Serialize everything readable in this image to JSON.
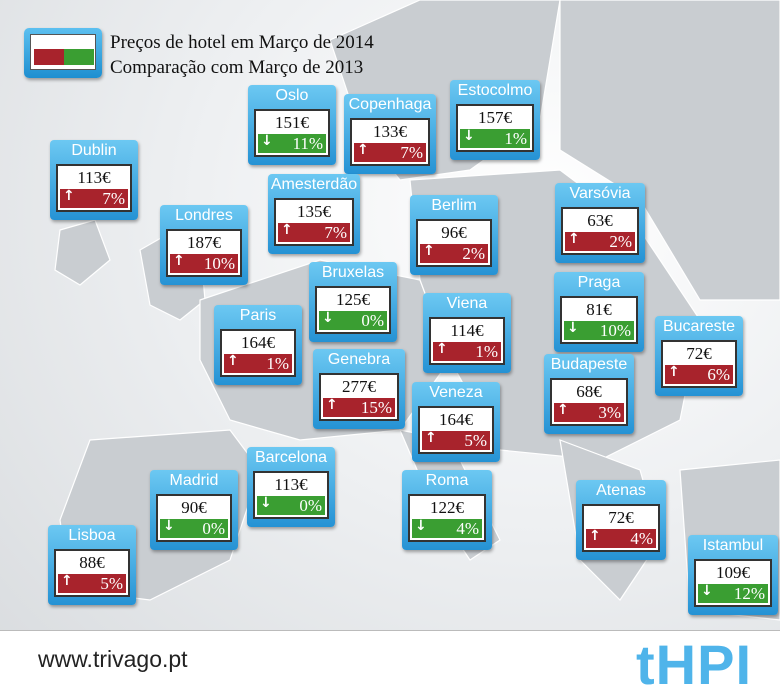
{
  "legend": {
    "price_label": "Preços de hotel em Março de 2014",
    "comparison_label": "Comparação com Março de 2013"
  },
  "colors": {
    "increase": "#a8232c",
    "decrease": "#3a9e32",
    "card": "#2592d4"
  },
  "cities": [
    {
      "name": "Oslo",
      "price": "151€",
      "direction": "down",
      "change": "11%"
    },
    {
      "name": "Copenhaga",
      "price": "133€",
      "direction": "up",
      "change": "7%"
    },
    {
      "name": "Estocolmo",
      "price": "157€",
      "direction": "down",
      "change": "1%"
    },
    {
      "name": "Dublin",
      "price": "113€",
      "direction": "up",
      "change": "7%"
    },
    {
      "name": "Amesterdão",
      "price": "135€",
      "direction": "up",
      "change": "7%"
    },
    {
      "name": "Berlim",
      "price": "96€",
      "direction": "up",
      "change": "2%"
    },
    {
      "name": "Varsóvia",
      "price": "63€",
      "direction": "up",
      "change": "2%"
    },
    {
      "name": "Londres",
      "price": "187€",
      "direction": "up",
      "change": "10%"
    },
    {
      "name": "Bruxelas",
      "price": "125€",
      "direction": "down",
      "change": "0%"
    },
    {
      "name": "Praga",
      "price": "81€",
      "direction": "down",
      "change": "10%"
    },
    {
      "name": "Paris",
      "price": "164€",
      "direction": "up",
      "change": "1%"
    },
    {
      "name": "Viena",
      "price": "114€",
      "direction": "up",
      "change": "1%"
    },
    {
      "name": "Bucareste",
      "price": "72€",
      "direction": "up",
      "change": "6%"
    },
    {
      "name": "Genebra",
      "price": "277€",
      "direction": "up",
      "change": "15%"
    },
    {
      "name": "Budapeste",
      "price": "68€",
      "direction": "up",
      "change": "3%"
    },
    {
      "name": "Veneza",
      "price": "164€",
      "direction": "up",
      "change": "5%"
    },
    {
      "name": "Barcelona",
      "price": "113€",
      "direction": "down",
      "change": "0%"
    },
    {
      "name": "Madrid",
      "price": "90€",
      "direction": "down",
      "change": "0%"
    },
    {
      "name": "Roma",
      "price": "122€",
      "direction": "down",
      "change": "4%"
    },
    {
      "name": "Atenas",
      "price": "72€",
      "direction": "up",
      "change": "4%"
    },
    {
      "name": "Lisboa",
      "price": "88€",
      "direction": "up",
      "change": "5%"
    },
    {
      "name": "Istambul",
      "price": "109€",
      "direction": "down",
      "change": "12%"
    }
  ],
  "footer": {
    "url": "www.trivago.pt",
    "logo": "tHPI"
  }
}
